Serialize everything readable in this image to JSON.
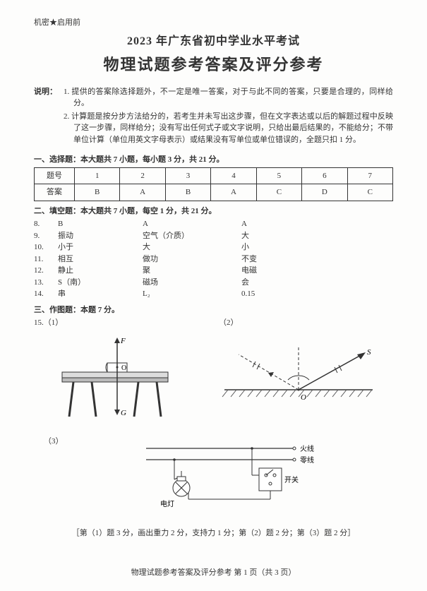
{
  "confidential": "机密★启用前",
  "title_line1": "2023 年广东省初中学业水平考试",
  "title_line2": "物理试题参考答案及评分参考",
  "instr_label": "说明：",
  "instr_items": [
    "1. 提供的答案除选择题外，不一定是唯一答案，对于与此不同的答案，只要是合理的，同样给分。",
    "2. 计算题是按分步方法给分的，若考生并未写出这步骤，但在文字表达或以后的解题过程中反映了这一步骤，同样给分；没有写出任何式子或文字说明，只给出最后结果的，不能给分；不带单位计算（单位用英文字母表示）或结果没有写单位或单位错误的，全题只扣 1 分。"
  ],
  "section1_head": "一、选择题：本大题共 7 小题，每小题 3 分，共 21 分。",
  "mc_table": {
    "header_label": "题号",
    "row_label": "答案",
    "cols": [
      "1",
      "2",
      "3",
      "4",
      "5",
      "6",
      "7"
    ],
    "answers": [
      "B",
      "A",
      "B",
      "A",
      "C",
      "D",
      "C"
    ]
  },
  "section2_head": "二、填空题：本大题共 7 小题，每空 1 分，共 21 分。",
  "fill_rows": [
    {
      "qn": "8.",
      "c1": "B",
      "c2": "A",
      "c3": "A"
    },
    {
      "qn": "9.",
      "c1": "振动",
      "c2": "空气（介质）",
      "c3": "大"
    },
    {
      "qn": "10.",
      "c1": "小于",
      "c2": "大",
      "c3": "小"
    },
    {
      "qn": "11.",
      "c1": "相互",
      "c2": "做功",
      "c3": "不变"
    },
    {
      "qn": "12.",
      "c1": "静止",
      "c2": "聚",
      "c3": "电磁"
    },
    {
      "qn": "13.",
      "c1": "S（南）",
      "c2": "磁场",
      "c3": "会"
    },
    {
      "qn": "14.",
      "c1": "串",
      "c2": "L₂",
      "c3": "0.15"
    }
  ],
  "section3_head": "三、作图题：本题 7 分。",
  "q15_label": "15.（1）",
  "q15_sub2": "（2）",
  "q15_sub3": "（3）",
  "diag1": {
    "F": "F",
    "G": "G",
    "O": "O"
  },
  "diag2": {
    "S": "S",
    "O": "O"
  },
  "diag3": {
    "live": "火线",
    "neutral": "零线",
    "lamp": "电灯",
    "switch": "开关"
  },
  "scoring_note": "［第（1）题 3 分，画出重力 2 分，支持力 1 分；第（2）题 2 分；第（3）题 2 分］",
  "footer": "物理试题参考答案及评分参考  第 1 页（共 3 页）",
  "colors": {
    "page_bg": "#fdfdfc",
    "text": "#333333",
    "border": "#333333",
    "table_fill": "#ffffff",
    "hatch": "#555555"
  }
}
